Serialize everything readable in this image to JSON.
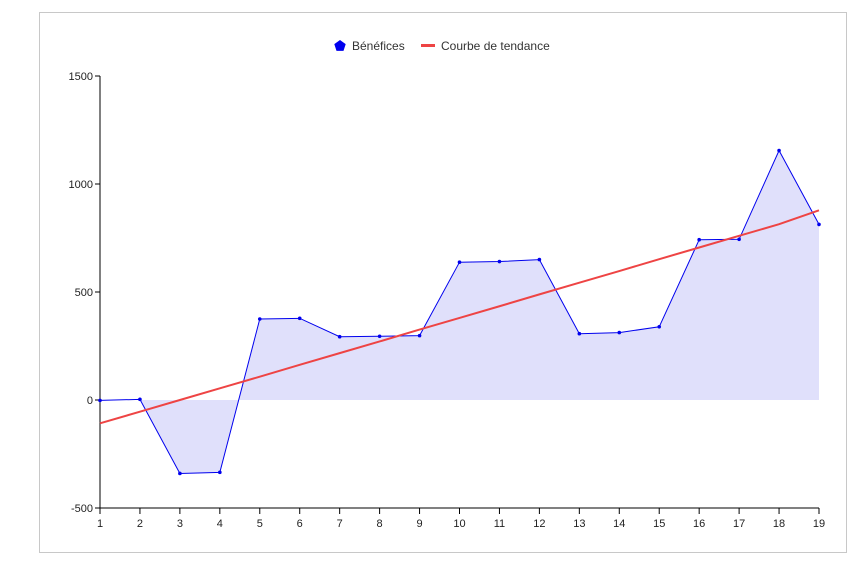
{
  "chart_data": {
    "type": "area",
    "x": [
      1,
      2,
      3,
      4,
      5,
      6,
      7,
      8,
      9,
      10,
      11,
      12,
      13,
      14,
      15,
      16,
      17,
      18,
      19
    ],
    "series": [
      {
        "name": "Bénéfices",
        "values": [
          -2,
          3,
          -340,
          -335,
          375,
          378,
          293,
          295,
          298,
          638,
          641,
          650,
          307,
          312,
          339,
          742,
          744,
          1155,
          813
        ],
        "color": "#0000ee",
        "fill": "#e0e0fb",
        "marker": "pentagon"
      },
      {
        "name": "Courbe de tendance",
        "type": "line",
        "values": [
          -108,
          -54,
          0,
          54,
          108,
          163,
          217,
          271,
          326,
          380,
          434,
          489,
          543,
          597,
          652,
          706,
          760,
          814,
          878
        ],
        "color": "#ee4444"
      }
    ],
    "ylim": [
      -500,
      1500
    ],
    "yticks": [
      "-500",
      "0",
      "500",
      "1000",
      "1500"
    ],
    "xticks": [
      "1",
      "2",
      "3",
      "4",
      "5",
      "6",
      "7",
      "8",
      "9",
      "10",
      "11",
      "12",
      "13",
      "14",
      "15",
      "16",
      "17",
      "18",
      "19"
    ],
    "legend": {
      "position": "top-center",
      "items": [
        "Bénéfices",
        "Courbe de tendance"
      ]
    },
    "grid": false,
    "title": "",
    "xlabel": "",
    "ylabel": ""
  }
}
